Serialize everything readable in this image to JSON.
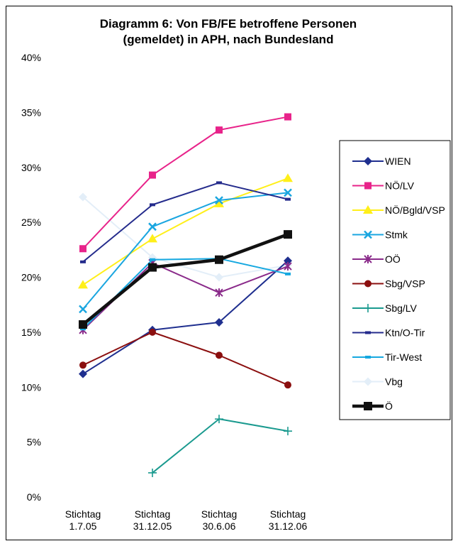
{
  "chart_data": {
    "type": "line",
    "title": "Diagramm 6: Von FB/FE betroffene Personen",
    "subtitle": "(gemeldet) in APH, nach Bundesland",
    "categories": [
      [
        "Stichtag",
        "1.7.05"
      ],
      [
        "Stichtag",
        "31.12.05"
      ],
      [
        "Stichtag",
        "30.6.06"
      ],
      [
        "Stichtag",
        "31.12.06"
      ]
    ],
    "y_ticks": [
      "0%",
      "5%",
      "10%",
      "15%",
      "20%",
      "25%",
      "30%",
      "35%",
      "40%"
    ],
    "ylim": [
      0,
      40
    ],
    "legend_position": "right",
    "grid": false,
    "series": [
      {
        "name": "WIEN",
        "color": "#1f2f8f",
        "marker": "diamond",
        "values": [
          11.2,
          15.2,
          15.9,
          21.5
        ]
      },
      {
        "name": "NÖ/LV",
        "color": "#e8238a",
        "marker": "square",
        "values": [
          22.6,
          29.3,
          33.4,
          34.6
        ]
      },
      {
        "name": "NÖ/Bgld/VSP",
        "color": "#ffef1a",
        "marker": "triangle",
        "values": [
          19.3,
          23.5,
          26.7,
          29.0
        ]
      },
      {
        "name": "Stmk",
        "color": "#1aa6e0",
        "marker": "x",
        "values": [
          17.1,
          24.6,
          27.0,
          27.7
        ]
      },
      {
        "name": "OÖ",
        "color": "#8a2a8a",
        "marker": "star",
        "values": [
          15.2,
          21.3,
          18.6,
          21.0
        ]
      },
      {
        "name": "Sbg/VSP",
        "color": "#8b0f0f",
        "marker": "circle",
        "values": [
          12.0,
          15.0,
          12.9,
          10.2
        ]
      },
      {
        "name": "Sbg/LV",
        "color": "#1a9a8f",
        "marker": "plus",
        "values": [
          null,
          2.2,
          7.1,
          6.0
        ]
      },
      {
        "name": "Ktn/O-Tir",
        "color": "#242b8c",
        "marker": "dash",
        "values": [
          21.4,
          26.6,
          28.6,
          27.1
        ]
      },
      {
        "name": "Tir-West",
        "color": "#16a8e0",
        "marker": "dash",
        "values": [
          15.3,
          21.6,
          21.7,
          20.3
        ]
      },
      {
        "name": "Vbg",
        "color": "#e3eef8",
        "marker": "diamond",
        "values": [
          27.3,
          21.8,
          20.0,
          21.1
        ]
      },
      {
        "name": "Ö",
        "color": "#111111",
        "marker": "square",
        "bold": true,
        "values": [
          15.7,
          20.9,
          21.6,
          23.9
        ]
      }
    ]
  }
}
